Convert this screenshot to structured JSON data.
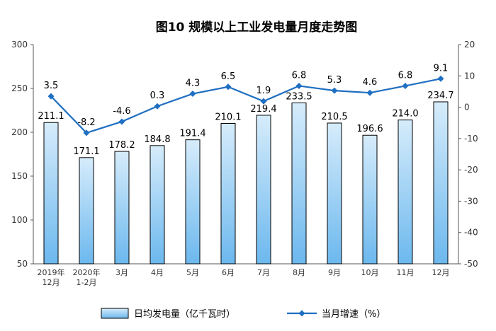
{
  "chart_data": {
    "type": "bar+line",
    "title": "图10  规模以上工业发电量月度走势图",
    "categories": [
      [
        "2019年",
        "12月"
      ],
      [
        "2020年",
        "1-2月"
      ],
      [
        "3月"
      ],
      [
        "4月"
      ],
      [
        "5月"
      ],
      [
        "6月"
      ],
      [
        "7月"
      ],
      [
        "8月"
      ],
      [
        "9月"
      ],
      [
        "10月"
      ],
      [
        "11月"
      ],
      [
        "12月"
      ]
    ],
    "series": [
      {
        "name": "日均发电量（亿千瓦时）",
        "type": "bar",
        "axis": "left",
        "values": [
          211.1,
          171.1,
          178.2,
          184.8,
          191.4,
          210.1,
          219.4,
          233.5,
          210.5,
          196.6,
          214.0,
          234.7
        ],
        "labels": [
          "211.1",
          "171.1",
          "178.2",
          "184.8",
          "191.4",
          "210.1",
          "219.4",
          "233.5",
          "210.5",
          "196.6",
          "214.0",
          "234.7"
        ]
      },
      {
        "name": "当月增速（%）",
        "type": "line",
        "axis": "right",
        "values": [
          3.5,
          -8.2,
          -4.6,
          0.3,
          4.3,
          6.5,
          1.9,
          6.8,
          5.3,
          4.6,
          6.8,
          9.1
        ],
        "labels": [
          "3.5",
          "-8.2",
          "-4.6",
          "0.3",
          "4.3",
          "6.5",
          "1.9",
          "6.8",
          "5.3",
          "4.6",
          "6.8",
          "9.1"
        ]
      }
    ],
    "y_left": {
      "min": 50,
      "max": 300,
      "ticks": [
        50,
        100,
        150,
        200,
        250,
        300
      ]
    },
    "y_right": {
      "min": -50,
      "max": 20,
      "ticks": [
        -50,
        -40,
        -30,
        -20,
        -10,
        0,
        10,
        20
      ]
    },
    "legend_position": "bottom",
    "colors": {
      "bar_fill_top": "#d6ecfb",
      "bar_fill_bottom": "#6cb8ee",
      "bar_stroke": "#000000",
      "line": "#1f6fc2"
    }
  }
}
